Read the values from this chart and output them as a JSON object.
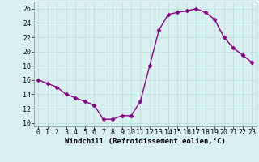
{
  "x": [
    0,
    1,
    2,
    3,
    4,
    5,
    6,
    7,
    8,
    9,
    10,
    11,
    12,
    13,
    14,
    15,
    16,
    17,
    18,
    19,
    20,
    21,
    22,
    23
  ],
  "y": [
    16,
    15.5,
    15,
    14,
    13.5,
    13,
    12.5,
    10.5,
    10.5,
    11,
    11,
    13,
    18,
    23,
    25.2,
    25.5,
    25.7,
    26,
    25.5,
    24.5,
    22,
    20.5,
    19.5,
    18.5
  ],
  "line_color": "#8B008B",
  "marker_color": "#8B008B",
  "bg_color": "#d9f0f0",
  "grid_color": "#b8dede",
  "xlabel": "Windchill (Refroidissement éolien,°C)",
  "xlim": [
    -0.5,
    23.5
  ],
  "ylim": [
    9.5,
    27
  ],
  "yticks": [
    10,
    12,
    14,
    16,
    18,
    20,
    22,
    24,
    26
  ],
  "xticks": [
    0,
    1,
    2,
    3,
    4,
    5,
    6,
    7,
    8,
    9,
    10,
    11,
    12,
    13,
    14,
    15,
    16,
    17,
    18,
    19,
    20,
    21,
    22,
    23
  ],
  "label_fontsize": 6.5,
  "tick_fontsize": 6,
  "line_width": 1.0,
  "marker_size": 2.5
}
